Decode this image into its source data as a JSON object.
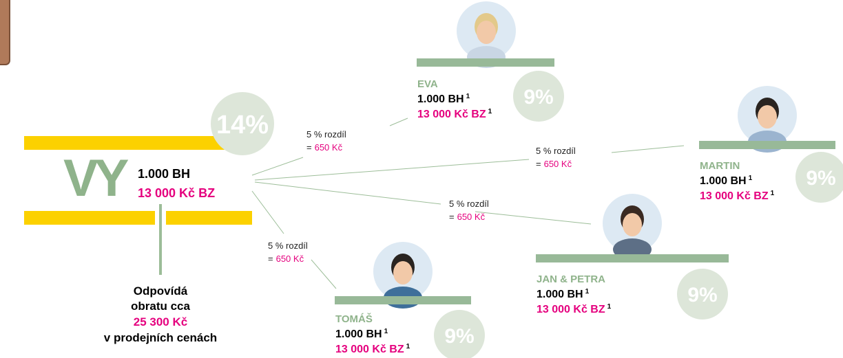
{
  "you": {
    "label": "VY",
    "bh": "1.000 BH",
    "bz": "13 000 Kč BZ",
    "percent": "14%"
  },
  "note": {
    "lines": [
      "Odpovídá",
      "obratu cca",
      "25 300 Kč",
      "v prodejních cenách"
    ]
  },
  "members": [
    {
      "name": "EVA",
      "bh": "1.000 BH",
      "bz": "13 000 Kč BZ",
      "footnote": "1",
      "percent": "9%"
    },
    {
      "name": "MARTIN",
      "bh": "1.000 BH",
      "bz": "13 000 Kč BZ",
      "footnote": "1",
      "percent": "9%"
    },
    {
      "name": "JAN & PETRA",
      "bh": "1.000 BH",
      "bz": "13 000 Kč BZ",
      "footnote": "1",
      "percent": "9%"
    },
    {
      "name": "TOMÁŠ",
      "bh": "1.000 BH",
      "bz": "13 000 Kč BZ",
      "footnote": "1",
      "percent": "9%"
    }
  ],
  "links": [
    {
      "label": "5 % rozdíl",
      "equals": "=",
      "amount": "650 Kč"
    },
    {
      "label": "5 % rozdíl",
      "equals": "=",
      "amount": "650 Kč"
    },
    {
      "label": "5 % rozdíl",
      "equals": "=",
      "amount": "650 Kč"
    },
    {
      "label": "5 % rozdíl",
      "equals": "=",
      "amount": "650 Kč"
    }
  ]
}
